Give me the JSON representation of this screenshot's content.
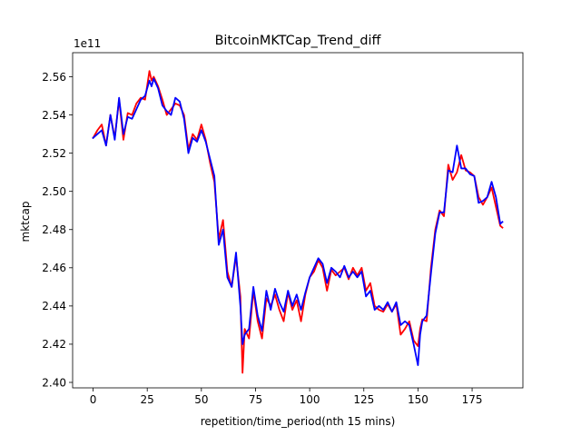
{
  "chart_data": {
    "type": "line",
    "title": "BitcoinMKTCap_Trend_diff",
    "xlabel": "repetition/time_period(nth 15 mins)",
    "ylabel": "mktcap",
    "y_offset_label": "1e11",
    "xlim": [
      -9.45,
      198.45
    ],
    "ylim": [
      2.39714,
      2.5726
    ],
    "x_ticks": [
      0,
      25,
      50,
      75,
      100,
      125,
      150,
      175
    ],
    "y_ticks": [
      2.4,
      2.42,
      2.44,
      2.46,
      2.48,
      2.5,
      2.52,
      2.54,
      2.56
    ],
    "y_tick_labels": [
      "2.40",
      "2.42",
      "2.44",
      "2.46",
      "2.48",
      "2.50",
      "2.52",
      "2.54",
      "2.56"
    ],
    "grid": false,
    "legend": "none",
    "series": [
      {
        "color": "#ff0000",
        "x": [
          0,
          2,
          4,
          6,
          8,
          10,
          12,
          14,
          16,
          18,
          20,
          22,
          24,
          26,
          27,
          28,
          30,
          32,
          34,
          36,
          38,
          40,
          42,
          44,
          46,
          48,
          50,
          52,
          54,
          56,
          58,
          60,
          62,
          64,
          66,
          68,
          69,
          70,
          72,
          74,
          76,
          78,
          80,
          82,
          84,
          86,
          88,
          90,
          92,
          94,
          96,
          98,
          100,
          102,
          104,
          106,
          108,
          110,
          112,
          114,
          116,
          118,
          120,
          122,
          124,
          126,
          128,
          130,
          132,
          134,
          136,
          138,
          140,
          142,
          144,
          146,
          148,
          150,
          151,
          152,
          154,
          156,
          158,
          160,
          162,
          164,
          166,
          168,
          170,
          172,
          174,
          176,
          178,
          180,
          182,
          184,
          186,
          188,
          189
        ],
        "y": [
          2.528,
          2.532,
          2.535,
          2.524,
          2.54,
          2.528,
          2.548,
          2.527,
          2.541,
          2.54,
          2.546,
          2.549,
          2.548,
          2.563,
          2.558,
          2.56,
          2.555,
          2.548,
          2.54,
          2.543,
          2.546,
          2.545,
          2.54,
          2.522,
          2.53,
          2.527,
          2.535,
          2.527,
          2.515,
          2.505,
          2.475,
          2.485,
          2.458,
          2.45,
          2.466,
          2.445,
          2.405,
          2.428,
          2.423,
          2.448,
          2.432,
          2.423,
          2.444,
          2.44,
          2.446,
          2.438,
          2.432,
          2.447,
          2.438,
          2.443,
          2.432,
          2.446,
          2.455,
          2.458,
          2.464,
          2.46,
          2.448,
          2.459,
          2.456,
          2.458,
          2.46,
          2.454,
          2.46,
          2.456,
          2.46,
          2.448,
          2.452,
          2.44,
          2.438,
          2.437,
          2.441,
          2.437,
          2.441,
          2.425,
          2.428,
          2.432,
          2.422,
          2.419,
          2.428,
          2.433,
          2.432,
          2.46,
          2.48,
          2.49,
          2.487,
          2.514,
          2.506,
          2.51,
          2.519,
          2.511,
          2.51,
          2.508,
          2.497,
          2.493,
          2.497,
          2.502,
          2.492,
          2.482,
          2.481
        ]
      },
      {
        "color": "#0000ff",
        "x": [
          0,
          2,
          4,
          6,
          8,
          10,
          12,
          14,
          16,
          18,
          20,
          22,
          24,
          26,
          27,
          28,
          30,
          32,
          34,
          36,
          38,
          40,
          42,
          44,
          46,
          48,
          50,
          52,
          54,
          56,
          58,
          60,
          62,
          64,
          66,
          68,
          69,
          70,
          72,
          74,
          76,
          78,
          80,
          82,
          84,
          86,
          88,
          90,
          92,
          94,
          96,
          98,
          100,
          102,
          104,
          106,
          108,
          110,
          112,
          114,
          116,
          118,
          120,
          122,
          124,
          126,
          128,
          130,
          132,
          134,
          136,
          138,
          140,
          142,
          144,
          146,
          148,
          150,
          151,
          152,
          154,
          156,
          158,
          160,
          162,
          164,
          166,
          168,
          170,
          172,
          174,
          176,
          178,
          180,
          182,
          184,
          186,
          188,
          189
        ],
        "y": [
          2.528,
          2.53,
          2.532,
          2.524,
          2.54,
          2.527,
          2.549,
          2.53,
          2.539,
          2.538,
          2.543,
          2.548,
          2.55,
          2.558,
          2.555,
          2.559,
          2.554,
          2.545,
          2.542,
          2.54,
          2.549,
          2.547,
          2.538,
          2.52,
          2.528,
          2.526,
          2.532,
          2.526,
          2.517,
          2.508,
          2.472,
          2.48,
          2.455,
          2.45,
          2.468,
          2.44,
          2.42,
          2.425,
          2.428,
          2.45,
          2.435,
          2.427,
          2.448,
          2.438,
          2.449,
          2.442,
          2.437,
          2.448,
          2.44,
          2.446,
          2.438,
          2.447,
          2.455,
          2.46,
          2.465,
          2.462,
          2.452,
          2.46,
          2.458,
          2.455,
          2.461,
          2.455,
          2.458,
          2.455,
          2.458,
          2.445,
          2.448,
          2.438,
          2.44,
          2.438,
          2.442,
          2.437,
          2.442,
          2.43,
          2.432,
          2.43,
          2.42,
          2.409,
          2.425,
          2.432,
          2.435,
          2.457,
          2.478,
          2.489,
          2.489,
          2.511,
          2.51,
          2.524,
          2.512,
          2.512,
          2.509,
          2.508,
          2.494,
          2.495,
          2.497,
          2.505,
          2.497,
          2.483,
          2.484
        ]
      }
    ]
  }
}
